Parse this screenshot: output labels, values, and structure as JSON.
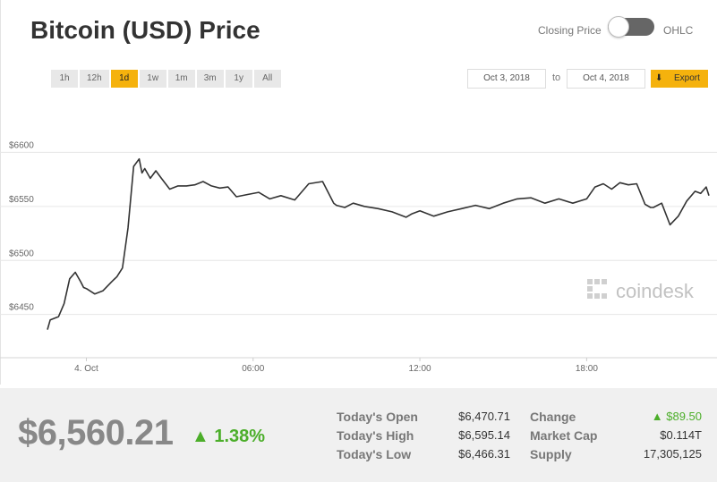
{
  "header": {
    "title": "Bitcoin (USD) Price"
  },
  "toggle": {
    "left_label": "Closing Price",
    "right_label": "OHLC",
    "state": "Closing Price"
  },
  "ranges": [
    "1h",
    "12h",
    "1d",
    "1w",
    "1m",
    "3m",
    "1y",
    "All"
  ],
  "active_range": "1d",
  "dates": {
    "from": "Oct 3, 2018",
    "to_label": "to",
    "to": "Oct 4, 2018"
  },
  "export": {
    "label": "Export",
    "icon": "download-arrow-icon"
  },
  "watermark": {
    "text": "coindesk"
  },
  "colors": {
    "accent": "#f5b20d",
    "line": "#333333",
    "positive": "#4cae2a",
    "summary_bg": "#f0f0f0"
  },
  "summary": {
    "price": "$6,560.21",
    "change_pct": "1.38%",
    "open_label": "Today's Open",
    "open_value": "$6,470.71",
    "high_label": "Today's High",
    "high_value": "$6,595.14",
    "low_label": "Today's Low",
    "low_value": "$6,466.31",
    "change_label": "Change",
    "change_value": "$89.50",
    "mcap_label": "Market Cap",
    "mcap_value": "$0.114T",
    "supply_label": "Supply",
    "supply_value": "17,305,125"
  },
  "chart_data": {
    "type": "line",
    "x_unit": "hours after 4 Oct 00:00",
    "xlim": [
      -1.4,
      22.4
    ],
    "ylim": [
      6410,
      6650
    ],
    "y_ticks": [
      6450,
      6500,
      6550,
      6600
    ],
    "y_tick_labels": [
      "$6450",
      "$6500",
      "$6550",
      "$6600"
    ],
    "x_ticks": [
      0,
      6,
      12,
      18
    ],
    "x_tick_labels": [
      "4. Oct",
      "06:00",
      "12:00",
      "18:00"
    ],
    "grid": "horizontal",
    "series": [
      {
        "x": [
          -1.4,
          -1.3,
          -1.0,
          -0.8,
          -0.6,
          -0.4,
          -0.2,
          -0.1,
          0.0,
          0.3,
          0.6,
          0.9,
          1.1,
          1.3,
          1.5,
          1.7,
          1.9,
          2.0,
          2.1,
          2.3,
          2.5,
          2.7,
          3.0,
          3.3,
          3.6,
          3.9,
          4.2,
          4.5,
          4.8,
          5.1,
          5.4,
          5.8,
          6.2,
          6.6,
          7.0,
          7.5,
          8.0,
          8.5,
          8.9,
          9.0,
          9.3,
          9.6,
          10.0,
          10.5,
          11.0,
          11.5,
          11.7,
          12.0,
          12.5,
          13.0,
          13.5,
          14.0,
          14.5,
          15.0,
          15.5,
          16.0,
          16.5,
          17.0,
          17.5,
          18.0,
          18.3,
          18.6,
          18.9,
          19.2,
          19.5,
          19.8,
          20.1,
          20.3,
          20.4,
          20.7,
          21.0,
          21.3,
          21.6,
          21.9,
          22.1,
          22.3,
          22.4
        ],
        "y": [
          6436,
          6445,
          6448,
          6460,
          6483,
          6489,
          6480,
          6475,
          6474,
          6469,
          6472,
          6480,
          6485,
          6493,
          6530,
          6587,
          6594,
          6581,
          6585,
          6576,
          6583,
          6576,
          6566,
          6569,
          6569,
          6570,
          6573,
          6569,
          6567,
          6568,
          6559,
          6561,
          6563,
          6557,
          6560,
          6556,
          6571,
          6573,
          6553,
          6551,
          6549,
          6553,
          6550,
          6548,
          6545,
          6540,
          6543,
          6546,
          6541,
          6545,
          6548,
          6551,
          6548,
          6553,
          6557,
          6558,
          6553,
          6557,
          6553,
          6557,
          6568,
          6571,
          6566,
          6572,
          6570,
          6571,
          6552,
          6549,
          6549,
          6553,
          6533,
          6541,
          6555,
          6564,
          6562,
          6568,
          6560
        ]
      }
    ]
  }
}
